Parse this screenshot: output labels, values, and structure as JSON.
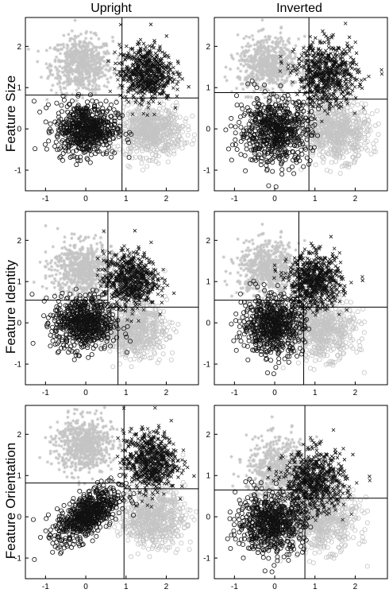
{
  "figure": {
    "column_titles": [
      "Upright",
      "Inverted"
    ],
    "row_titles": [
      "Feature Size",
      "Feature Identity",
      "Feature Orientation"
    ]
  },
  "colors": {
    "black": "#111111",
    "gray": "#c4c4c4",
    "axis": "#000000"
  },
  "chart_data": [
    {
      "type": "scatter",
      "row": "Feature Size",
      "column": "Upright",
      "xlim": [
        -1.5,
        2.8
      ],
      "ylim": [
        -1.5,
        2.7
      ],
      "xticks": [
        -1,
        0,
        1,
        2
      ],
      "yticks": [
        -1,
        0,
        1,
        2
      ],
      "clusters": [
        {
          "marker": "circle",
          "color": "black",
          "center": [
            0,
            0
          ],
          "spread": [
            0.38,
            0.32
          ],
          "count": 650
        },
        {
          "marker": "cross",
          "color": "black",
          "center": [
            1.5,
            1.35
          ],
          "spread": [
            0.32,
            0.33
          ],
          "count": 650
        },
        {
          "marker": "star",
          "color": "gray",
          "center": [
            -0.1,
            1.55
          ],
          "spread": [
            0.38,
            0.33
          ],
          "count": 650
        },
        {
          "marker": "circle",
          "color": "gray",
          "center": [
            1.6,
            -0.05
          ],
          "spread": [
            0.4,
            0.3
          ],
          "count": 650
        }
      ],
      "boundaries": {
        "v": 0.9,
        "h_left": 0.82,
        "h_right": 0.75
      }
    },
    {
      "type": "scatter",
      "row": "Feature Size",
      "column": "Inverted",
      "xlim": [
        -1.5,
        2.8
      ],
      "ylim": [
        -1.5,
        2.7
      ],
      "xticks": [
        -1,
        0,
        1,
        2
      ],
      "yticks": [
        -1,
        0,
        1,
        2
      ],
      "clusters": [
        {
          "marker": "circle",
          "color": "black",
          "center": [
            0,
            -0.05
          ],
          "spread": [
            0.45,
            0.4
          ],
          "count": 650
        },
        {
          "marker": "cross",
          "color": "black",
          "center": [
            1.3,
            1.3
          ],
          "spread": [
            0.38,
            0.38
          ],
          "count": 650
        },
        {
          "marker": "star",
          "color": "gray",
          "center": [
            -0.15,
            1.55
          ],
          "spread": [
            0.38,
            0.33
          ],
          "count": 650
        },
        {
          "marker": "circle",
          "color": "gray",
          "center": [
            1.55,
            -0.05
          ],
          "spread": [
            0.4,
            0.35
          ],
          "count": 650
        }
      ],
      "boundaries": {
        "v": 0.85,
        "h_left": 0.88,
        "h_right": 0.72
      }
    },
    {
      "type": "scatter",
      "row": "Feature Identity",
      "column": "Upright",
      "xlim": [
        -1.5,
        2.8
      ],
      "ylim": [
        -1.5,
        2.7
      ],
      "xticks": [
        -1,
        0,
        1,
        2
      ],
      "yticks": [
        -1,
        0,
        1,
        2
      ],
      "clusters": [
        {
          "marker": "circle",
          "color": "black",
          "center": [
            -0.05,
            0
          ],
          "spread": [
            0.38,
            0.33
          ],
          "count": 650
        },
        {
          "marker": "cross",
          "color": "black",
          "center": [
            1.1,
            1.05
          ],
          "spread": [
            0.33,
            0.33
          ],
          "count": 650
        },
        {
          "marker": "star",
          "color": "gray",
          "center": [
            -0.1,
            1.3
          ],
          "spread": [
            0.38,
            0.33
          ],
          "count": 650
        },
        {
          "marker": "circle",
          "color": "gray",
          "center": [
            1.2,
            -0.15
          ],
          "spread": [
            0.4,
            0.33
          ],
          "count": 650
        }
      ],
      "boundaries": {
        "v_top": 0.55,
        "v_bottom": 0.8,
        "h_left": 0.55,
        "h_right": 0.38
      }
    },
    {
      "type": "scatter",
      "row": "Feature Identity",
      "column": "Inverted",
      "xlim": [
        -1.5,
        2.8
      ],
      "ylim": [
        -1.5,
        2.7
      ],
      "xticks": [
        -1,
        0,
        1,
        2
      ],
      "yticks": [
        -1,
        0,
        1,
        2
      ],
      "clusters": [
        {
          "marker": "circle",
          "color": "black",
          "center": [
            -0.05,
            -0.05
          ],
          "spread": [
            0.38,
            0.35
          ],
          "count": 650
        },
        {
          "marker": "cross",
          "color": "black",
          "center": [
            1.0,
            1.0
          ],
          "spread": [
            0.33,
            0.33
          ],
          "count": 650
        },
        {
          "marker": "star",
          "color": "gray",
          "center": [
            -0.15,
            1.3
          ],
          "spread": [
            0.38,
            0.33
          ],
          "count": 650
        },
        {
          "marker": "circle",
          "color": "gray",
          "center": [
            1.15,
            -0.15
          ],
          "spread": [
            0.42,
            0.35
          ],
          "count": 650
        }
      ],
      "boundaries": {
        "v_top": 0.6,
        "v_bottom": 0.72,
        "h_left": 0.55,
        "h_right": 0.38
      }
    },
    {
      "type": "scatter",
      "row": "Feature Orientation",
      "column": "Upright",
      "xlim": [
        -1.5,
        2.8
      ],
      "ylim": [
        -1.5,
        2.7
      ],
      "xticks": [
        -1,
        0,
        1,
        2
      ],
      "yticks": [
        -1,
        0,
        1,
        2
      ],
      "clusters": [
        {
          "marker": "circle",
          "color": "black",
          "center": [
            0.05,
            0.05
          ],
          "spread": [
            0.4,
            0.34
          ],
          "count": 650,
          "corr": 0.6
        },
        {
          "marker": "cross",
          "color": "black",
          "center": [
            1.6,
            1.35
          ],
          "spread": [
            0.33,
            0.36
          ],
          "count": 650
        },
        {
          "marker": "star",
          "color": "gray",
          "center": [
            -0.05,
            1.75
          ],
          "spread": [
            0.35,
            0.33
          ],
          "count": 650
        },
        {
          "marker": "circle",
          "color": "gray",
          "center": [
            1.65,
            0.0
          ],
          "spread": [
            0.4,
            0.35
          ],
          "count": 650
        }
      ],
      "boundaries": {
        "v": 0.95,
        "h_left": 0.82,
        "h_right": 0.68
      }
    },
    {
      "type": "scatter",
      "row": "Feature Orientation",
      "column": "Inverted",
      "xlim": [
        -1.5,
        2.8
      ],
      "ylim": [
        -1.5,
        2.7
      ],
      "xticks": [
        -1,
        0,
        1,
        2
      ],
      "yticks": [
        -1,
        0,
        1,
        2
      ],
      "clusters": [
        {
          "marker": "circle",
          "color": "black",
          "center": [
            -0.1,
            -0.15
          ],
          "spread": [
            0.42,
            0.35
          ],
          "count": 650
        },
        {
          "marker": "cross",
          "color": "black",
          "center": [
            1.0,
            0.85
          ],
          "spread": [
            0.38,
            0.38
          ],
          "count": 650
        },
        {
          "marker": "star",
          "color": "gray",
          "center": [
            0.1,
            1.1
          ],
          "spread": [
            0.4,
            0.4
          ],
          "count": 650
        },
        {
          "marker": "circle",
          "color": "gray",
          "center": [
            1.15,
            -0.05
          ],
          "spread": [
            0.45,
            0.38
          ],
          "count": 650
        }
      ],
      "boundaries": {
        "v": 0.75,
        "h_left": 0.65,
        "h_right": 0.45
      }
    }
  ]
}
